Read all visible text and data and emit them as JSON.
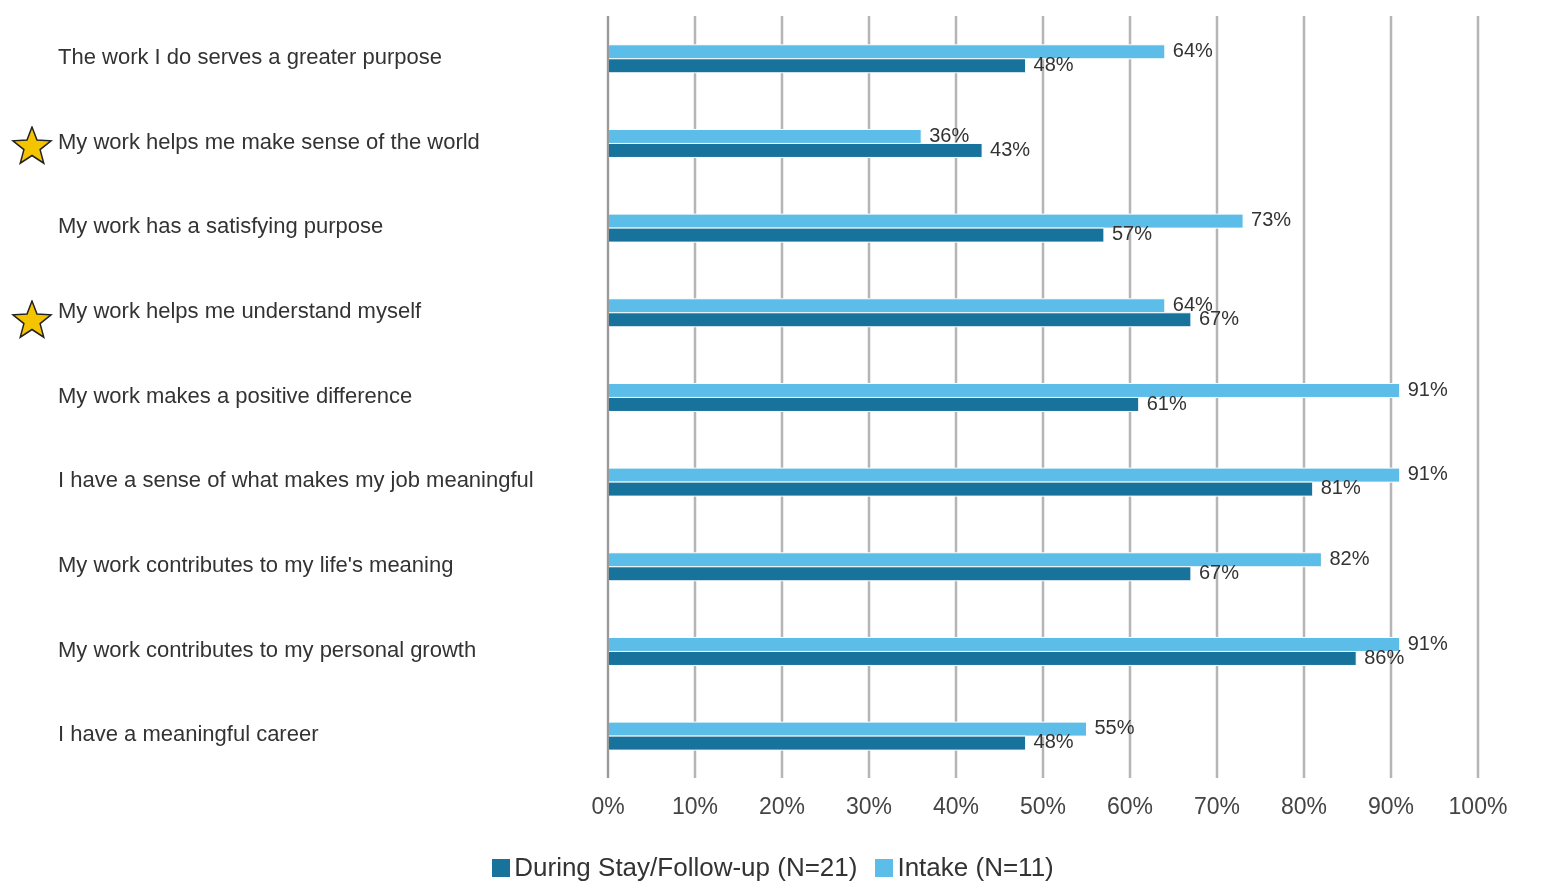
{
  "chart_data": {
    "type": "bar",
    "orientation": "horizontal",
    "categories": [
      "The work I do serves a greater purpose",
      "My work helps me make sense of the world",
      "My work has a satisfying purpose",
      "My work helps me understand myself",
      "My work makes a positive difference",
      "I have a sense of what makes my job meaningful",
      "My work contributes to my life's meaning",
      "My work contributes to my personal growth",
      "I have a meaningful career"
    ],
    "series": [
      {
        "name": "Intake (N=11)",
        "color": "#5bbde8",
        "values": [
          64,
          36,
          73,
          64,
          91,
          91,
          82,
          91,
          55
        ],
        "value_labels": [
          "64%",
          "36%",
          "73%",
          "64%",
          "91%",
          "91%",
          "82%",
          "91%",
          "55%"
        ]
      },
      {
        "name": "During Stay/Follow-up (N=21)",
        "color": "#17729c",
        "values": [
          48,
          43,
          57,
          67,
          61,
          81,
          67,
          86,
          48
        ],
        "value_labels": [
          "48%",
          "43%",
          "57%",
          "67%",
          "61%",
          "81%",
          "67%",
          "86%",
          "48%"
        ]
      }
    ],
    "xlim": [
      0,
      100
    ],
    "xticks": [
      {
        "value": 0,
        "label": "0%"
      },
      {
        "value": 10,
        "label": "10%"
      },
      {
        "value": 20,
        "label": "20%"
      },
      {
        "value": 30,
        "label": "30%"
      },
      {
        "value": 40,
        "label": "40%"
      },
      {
        "value": 50,
        "label": "50%"
      },
      {
        "value": 60,
        "label": "60%"
      },
      {
        "value": 70,
        "label": "70%"
      },
      {
        "value": 80,
        "label": "80%"
      },
      {
        "value": 90,
        "label": "90%"
      },
      {
        "value": 100,
        "label": "100%"
      }
    ],
    "grid": "x",
    "legend": "bottom"
  }
}
